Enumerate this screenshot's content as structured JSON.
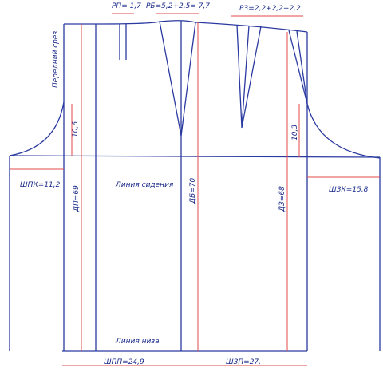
{
  "labels": {
    "rp": "РП= 1,7",
    "rb": "РБ=5,2+2,5= 7,7",
    "rz": "РЗ=2,2+2,2+2,2",
    "front_cut": "Передний срез",
    "front_depth": "10,6",
    "back_depth": "10,3",
    "shpk": "ШПК=11,2",
    "dp": "ДП=69",
    "seat_line": "Линия сидения",
    "db": "ДБ=70",
    "dz": "ДЗ=68",
    "shzk": "ШЗК=15,8",
    "hem_line": "Линия низа",
    "shpp": "ШПП=24,9",
    "shzp": "ШЗП=27,"
  }
}
